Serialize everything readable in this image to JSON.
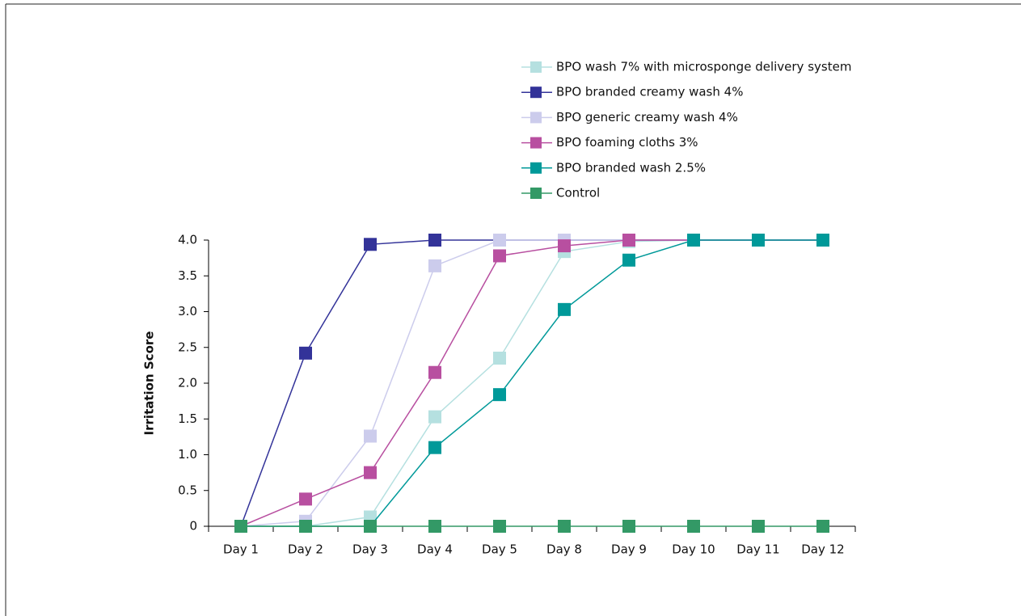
{
  "chart_data": {
    "type": "line",
    "y_label": "Irritation Score",
    "categories": [
      "Day 1",
      "Day 2",
      "Day 3",
      "Day 4",
      "Day 5",
      "Day 8",
      "Day 9",
      "Day 10",
      "Day 11",
      "Day 12"
    ],
    "ylim": [
      0,
      4
    ],
    "yticks": [
      0,
      0.5,
      {
        "value": 1,
        "label": "1.0"
      },
      1.5,
      {
        "value": 2,
        "label": "2.0"
      },
      2.5,
      {
        "value": 3,
        "label": "3.0"
      },
      3.5,
      {
        "value": 4,
        "label": "4.0"
      }
    ],
    "series": [
      {
        "name": "BPO wash 7% with microsponge delivery system",
        "color": "#b5e0e0",
        "values": [
          0,
          0,
          0.13,
          1.53,
          2.35,
          3.84,
          3.98,
          4,
          4,
          4
        ]
      },
      {
        "name": "BPO branded creamy wash 4%",
        "color": "#333399",
        "values": [
          0,
          2.42,
          3.94,
          4,
          4,
          4,
          4,
          4,
          4,
          4
        ]
      },
      {
        "name": "BPO generic creamy wash 4%",
        "color": "#ccccec",
        "values": [
          0,
          0.07,
          1.26,
          3.64,
          4,
          4,
          4,
          4,
          4,
          4
        ]
      },
      {
        "name": "BPO foaming cloths 3%",
        "color": "#b84fa0",
        "values": [
          0,
          0.38,
          0.75,
          2.15,
          3.78,
          3.92,
          4,
          4,
          4,
          4
        ]
      },
      {
        "name": "BPO branded wash 2.5%",
        "color": "#009999",
        "values": [
          0,
          0,
          0,
          1.1,
          1.84,
          3.03,
          3.72,
          4,
          4,
          4
        ]
      },
      {
        "name": "Control",
        "color": "#339966",
        "values": [
          0,
          0,
          0,
          0,
          0,
          0,
          0,
          0,
          0,
          0
        ]
      }
    ]
  }
}
